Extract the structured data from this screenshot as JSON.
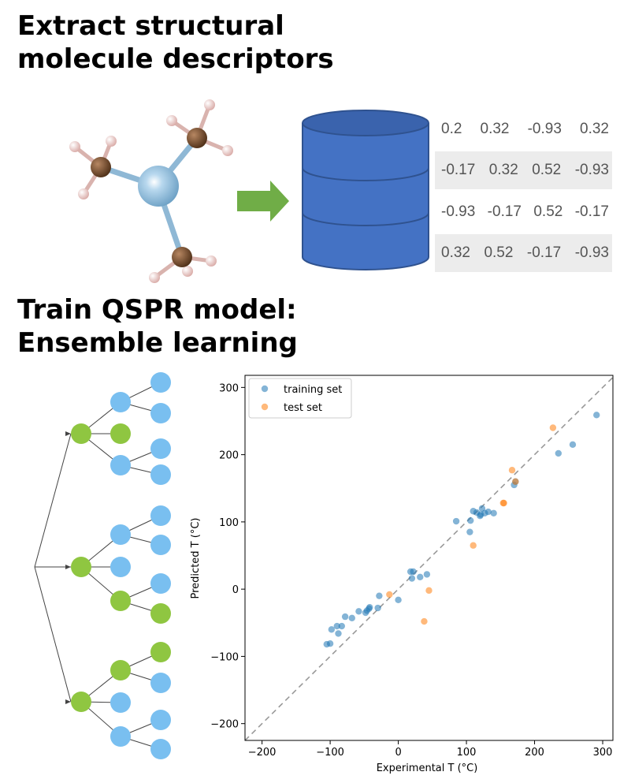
{
  "section1": {
    "title_line1": "Extract structural",
    "title_line2": "molecule descriptors"
  },
  "section2": {
    "title_line1": "Train QSPR model:",
    "title_line2": "Ensemble learning"
  },
  "descriptor_table": [
    [
      "0.2",
      "0.32",
      "-0.93",
      "0.32"
    ],
    [
      "-0.17",
      "0.32",
      "0.52",
      "-0.93"
    ],
    [
      "-0.93",
      "-0.17",
      "0.52",
      "-0.17"
    ],
    [
      "0.32",
      "0.52",
      "-0.17",
      "-0.93"
    ]
  ],
  "colors": {
    "database": "#4472c4",
    "arrow": "#70ad47",
    "tree_internal": "#8fc641",
    "tree_leaf": "#79bff0",
    "training": "#1f77b4",
    "test": "#ff7f0e",
    "carbon": "#6b4426",
    "hydrogen": "#e6c3c0",
    "central_atom": "#7fb2d6"
  },
  "icons": {
    "molecule": "molecule-model-icon",
    "database": "database-cylinder-icon",
    "arrow": "right-arrow-icon"
  },
  "chart_data": {
    "type": "scatter",
    "xlabel": "Experimental T (°C)",
    "ylabel": "Predicted T (°C)",
    "xlim": [
      -225,
      315
    ],
    "ylim": [
      -225,
      318
    ],
    "xticks": [
      -200,
      -100,
      0,
      100,
      200,
      300
    ],
    "yticks": [
      -200,
      -100,
      0,
      100,
      200,
      300
    ],
    "grid": false,
    "legend_position": "top-left",
    "reference_line": "y = x (dashed)",
    "series": [
      {
        "name": "training set",
        "color": "#1f77b4",
        "points": [
          [
            -105,
            -82
          ],
          [
            -100,
            -81
          ],
          [
            -98,
            -60
          ],
          [
            -90,
            -55
          ],
          [
            -88,
            -66
          ],
          [
            -83,
            -55
          ],
          [
            -78,
            -41
          ],
          [
            -68,
            -43
          ],
          [
            -58,
            -33
          ],
          [
            -48,
            -35
          ],
          [
            -46,
            -32
          ],
          [
            -43,
            -29
          ],
          [
            -42,
            -27
          ],
          [
            -30,
            -28
          ],
          [
            -28,
            -10
          ],
          [
            0,
            -16
          ],
          [
            18,
            26
          ],
          [
            20,
            16
          ],
          [
            22,
            26
          ],
          [
            32,
            18
          ],
          [
            42,
            22
          ],
          [
            85,
            101
          ],
          [
            105,
            85
          ],
          [
            106,
            102
          ],
          [
            110,
            116
          ],
          [
            115,
            114
          ],
          [
            120,
            109
          ],
          [
            121,
            111
          ],
          [
            123,
            120
          ],
          [
            127,
            113
          ],
          [
            132,
            115
          ],
          [
            140,
            113
          ],
          [
            170,
            155
          ],
          [
            172,
            160
          ],
          [
            235,
            202
          ],
          [
            256,
            215
          ],
          [
            291,
            259
          ]
        ]
      },
      {
        "name": "test set",
        "color": "#ff7f0e",
        "points": [
          [
            -13,
            -8
          ],
          [
            38,
            -48
          ],
          [
            45,
            -2
          ],
          [
            110,
            65
          ],
          [
            154,
            128
          ],
          [
            155,
            128
          ],
          [
            167,
            177
          ],
          [
            172,
            160
          ],
          [
            227,
            240
          ]
        ]
      }
    ]
  }
}
